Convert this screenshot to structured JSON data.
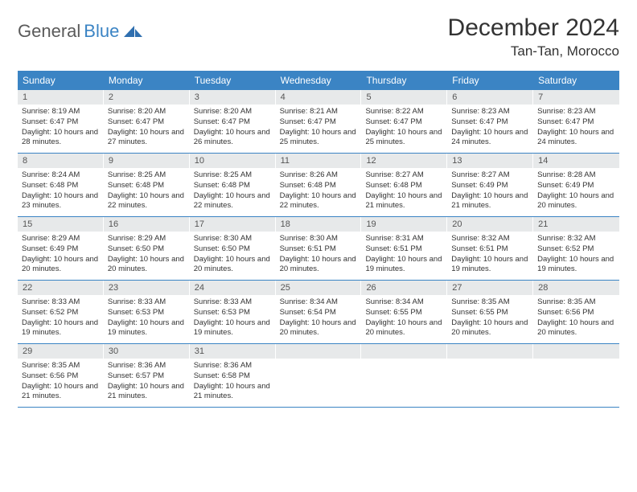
{
  "logo": {
    "word1": "General",
    "word2": "Blue"
  },
  "title": "December 2024",
  "location": "Tan-Tan, Morocco",
  "colors": {
    "header_bg": "#3b84c4",
    "header_text": "#ffffff",
    "daynum_bg": "#e7e9ea",
    "week_border": "#3b84c4",
    "text": "#333333"
  },
  "weekdays": [
    "Sunday",
    "Monday",
    "Tuesday",
    "Wednesday",
    "Thursday",
    "Friday",
    "Saturday"
  ],
  "weeks": [
    [
      {
        "n": "1",
        "sr": "Sunrise: 8:19 AM",
        "ss": "Sunset: 6:47 PM",
        "dl": "Daylight: 10 hours and 28 minutes."
      },
      {
        "n": "2",
        "sr": "Sunrise: 8:20 AM",
        "ss": "Sunset: 6:47 PM",
        "dl": "Daylight: 10 hours and 27 minutes."
      },
      {
        "n": "3",
        "sr": "Sunrise: 8:20 AM",
        "ss": "Sunset: 6:47 PM",
        "dl": "Daylight: 10 hours and 26 minutes."
      },
      {
        "n": "4",
        "sr": "Sunrise: 8:21 AM",
        "ss": "Sunset: 6:47 PM",
        "dl": "Daylight: 10 hours and 25 minutes."
      },
      {
        "n": "5",
        "sr": "Sunrise: 8:22 AM",
        "ss": "Sunset: 6:47 PM",
        "dl": "Daylight: 10 hours and 25 minutes."
      },
      {
        "n": "6",
        "sr": "Sunrise: 8:23 AM",
        "ss": "Sunset: 6:47 PM",
        "dl": "Daylight: 10 hours and 24 minutes."
      },
      {
        "n": "7",
        "sr": "Sunrise: 8:23 AM",
        "ss": "Sunset: 6:47 PM",
        "dl": "Daylight: 10 hours and 24 minutes."
      }
    ],
    [
      {
        "n": "8",
        "sr": "Sunrise: 8:24 AM",
        "ss": "Sunset: 6:48 PM",
        "dl": "Daylight: 10 hours and 23 minutes."
      },
      {
        "n": "9",
        "sr": "Sunrise: 8:25 AM",
        "ss": "Sunset: 6:48 PM",
        "dl": "Daylight: 10 hours and 22 minutes."
      },
      {
        "n": "10",
        "sr": "Sunrise: 8:25 AM",
        "ss": "Sunset: 6:48 PM",
        "dl": "Daylight: 10 hours and 22 minutes."
      },
      {
        "n": "11",
        "sr": "Sunrise: 8:26 AM",
        "ss": "Sunset: 6:48 PM",
        "dl": "Daylight: 10 hours and 22 minutes."
      },
      {
        "n": "12",
        "sr": "Sunrise: 8:27 AM",
        "ss": "Sunset: 6:48 PM",
        "dl": "Daylight: 10 hours and 21 minutes."
      },
      {
        "n": "13",
        "sr": "Sunrise: 8:27 AM",
        "ss": "Sunset: 6:49 PM",
        "dl": "Daylight: 10 hours and 21 minutes."
      },
      {
        "n": "14",
        "sr": "Sunrise: 8:28 AM",
        "ss": "Sunset: 6:49 PM",
        "dl": "Daylight: 10 hours and 20 minutes."
      }
    ],
    [
      {
        "n": "15",
        "sr": "Sunrise: 8:29 AM",
        "ss": "Sunset: 6:49 PM",
        "dl": "Daylight: 10 hours and 20 minutes."
      },
      {
        "n": "16",
        "sr": "Sunrise: 8:29 AM",
        "ss": "Sunset: 6:50 PM",
        "dl": "Daylight: 10 hours and 20 minutes."
      },
      {
        "n": "17",
        "sr": "Sunrise: 8:30 AM",
        "ss": "Sunset: 6:50 PM",
        "dl": "Daylight: 10 hours and 20 minutes."
      },
      {
        "n": "18",
        "sr": "Sunrise: 8:30 AM",
        "ss": "Sunset: 6:51 PM",
        "dl": "Daylight: 10 hours and 20 minutes."
      },
      {
        "n": "19",
        "sr": "Sunrise: 8:31 AM",
        "ss": "Sunset: 6:51 PM",
        "dl": "Daylight: 10 hours and 19 minutes."
      },
      {
        "n": "20",
        "sr": "Sunrise: 8:32 AM",
        "ss": "Sunset: 6:51 PM",
        "dl": "Daylight: 10 hours and 19 minutes."
      },
      {
        "n": "21",
        "sr": "Sunrise: 8:32 AM",
        "ss": "Sunset: 6:52 PM",
        "dl": "Daylight: 10 hours and 19 minutes."
      }
    ],
    [
      {
        "n": "22",
        "sr": "Sunrise: 8:33 AM",
        "ss": "Sunset: 6:52 PM",
        "dl": "Daylight: 10 hours and 19 minutes."
      },
      {
        "n": "23",
        "sr": "Sunrise: 8:33 AM",
        "ss": "Sunset: 6:53 PM",
        "dl": "Daylight: 10 hours and 19 minutes."
      },
      {
        "n": "24",
        "sr": "Sunrise: 8:33 AM",
        "ss": "Sunset: 6:53 PM",
        "dl": "Daylight: 10 hours and 19 minutes."
      },
      {
        "n": "25",
        "sr": "Sunrise: 8:34 AM",
        "ss": "Sunset: 6:54 PM",
        "dl": "Daylight: 10 hours and 20 minutes."
      },
      {
        "n": "26",
        "sr": "Sunrise: 8:34 AM",
        "ss": "Sunset: 6:55 PM",
        "dl": "Daylight: 10 hours and 20 minutes."
      },
      {
        "n": "27",
        "sr": "Sunrise: 8:35 AM",
        "ss": "Sunset: 6:55 PM",
        "dl": "Daylight: 10 hours and 20 minutes."
      },
      {
        "n": "28",
        "sr": "Sunrise: 8:35 AM",
        "ss": "Sunset: 6:56 PM",
        "dl": "Daylight: 10 hours and 20 minutes."
      }
    ],
    [
      {
        "n": "29",
        "sr": "Sunrise: 8:35 AM",
        "ss": "Sunset: 6:56 PM",
        "dl": "Daylight: 10 hours and 21 minutes."
      },
      {
        "n": "30",
        "sr": "Sunrise: 8:36 AM",
        "ss": "Sunset: 6:57 PM",
        "dl": "Daylight: 10 hours and 21 minutes."
      },
      {
        "n": "31",
        "sr": "Sunrise: 8:36 AM",
        "ss": "Sunset: 6:58 PM",
        "dl": "Daylight: 10 hours and 21 minutes."
      },
      {
        "n": "",
        "sr": "",
        "ss": "",
        "dl": "",
        "empty": true
      },
      {
        "n": "",
        "sr": "",
        "ss": "",
        "dl": "",
        "empty": true
      },
      {
        "n": "",
        "sr": "",
        "ss": "",
        "dl": "",
        "empty": true
      },
      {
        "n": "",
        "sr": "",
        "ss": "",
        "dl": "",
        "empty": true
      }
    ]
  ]
}
